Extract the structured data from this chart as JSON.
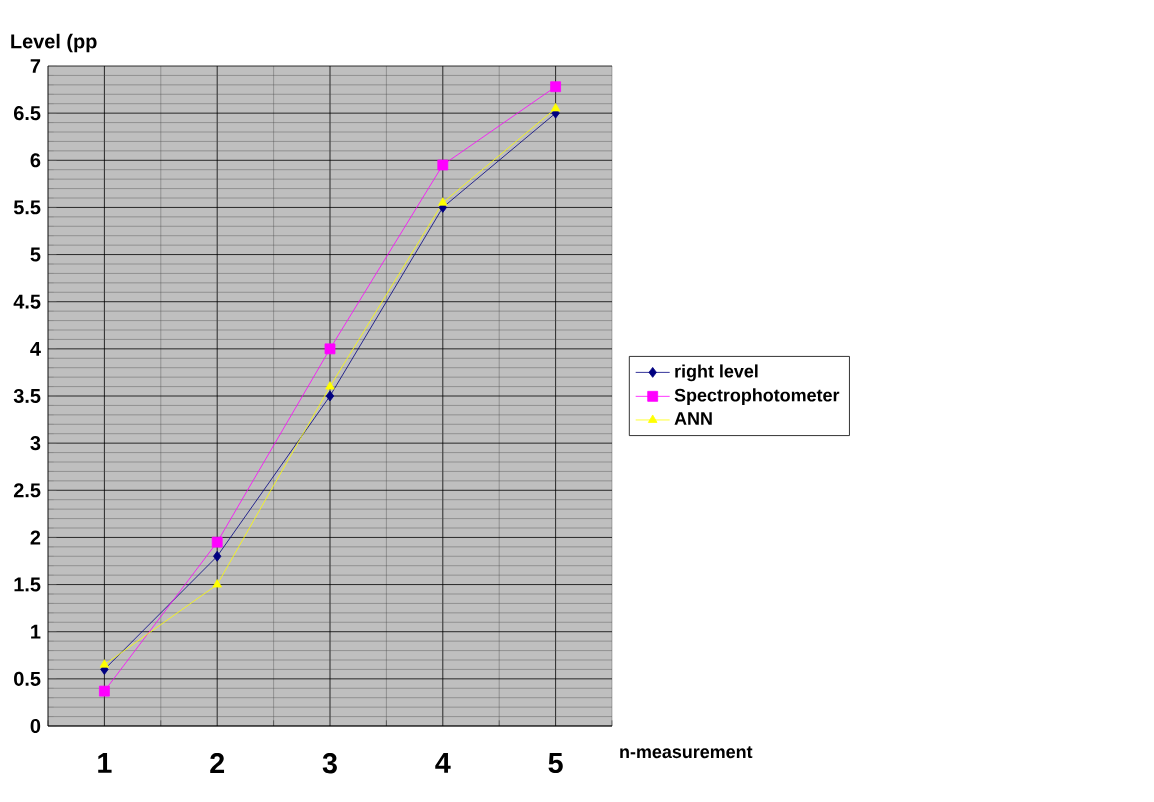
{
  "chart_data": {
    "type": "line",
    "ylabel": "Level (pp",
    "xlabel": "n-measurement",
    "categories": [
      "1",
      "2",
      "3",
      "4",
      "5"
    ],
    "series": [
      {
        "name": "right level",
        "color": "#000080",
        "marker": "diamond",
        "values": [
          0.6,
          1.8,
          3.5,
          5.5,
          6.5
        ]
      },
      {
        "name": "Spectrophotometer",
        "color": "#ff00ff",
        "marker": "square",
        "values": [
          0.37,
          1.95,
          4.0,
          5.95,
          6.78
        ]
      },
      {
        "name": "ANN",
        "color": "#ffff00",
        "marker": "triangle",
        "values": [
          0.65,
          1.5,
          3.6,
          5.55,
          6.55
        ]
      }
    ],
    "ylim": [
      0,
      7
    ],
    "yticks": [
      0,
      0.5,
      1,
      1.5,
      2,
      2.5,
      3,
      3.5,
      4,
      4.5,
      5,
      5.5,
      6,
      6.5,
      7
    ],
    "grid": true,
    "legend": "right"
  }
}
